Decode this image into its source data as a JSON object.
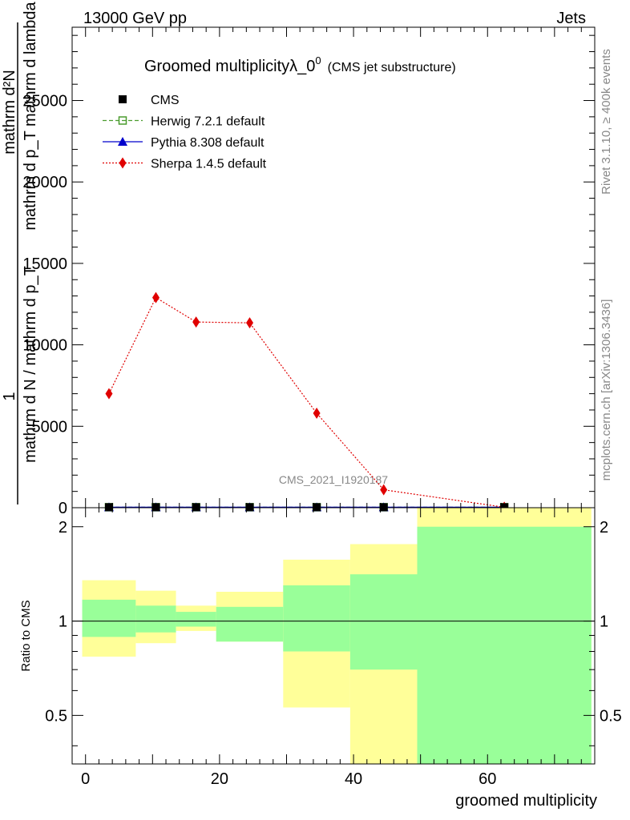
{
  "header": {
    "left_label": "13000 GeV pp",
    "right_label": "Jets"
  },
  "side_labels": {
    "rivet": "Rivet 3.1.10, ≥ 400k events",
    "mcplots": "mcplots.cern.ch [arXiv:1306.3436]"
  },
  "chart_data": {
    "type": "line",
    "title": "Groomed multiplicityλ_0",
    "title_sup": "0",
    "subtitle": "(CMS jet substructure)",
    "watermark": "CMS_2021_I1920187",
    "ylabel_num1": "mathrm d²N",
    "ylabel_den1": "mathrm d p_T mathrm d lambda",
    "ylabel_one": "1",
    "ylabel_den2": "mathrm d N / mathrm d p_T",
    "xlabel": "groomed multiplicity",
    "ratio_ylabel": "Ratio to CMS",
    "xlim": [
      -2,
      76
    ],
    "ylim": [
      0,
      29500
    ],
    "y_ticks": [
      0,
      5000,
      10000,
      15000,
      20000,
      25000
    ],
    "x_ticks": [
      0,
      20,
      40,
      60
    ],
    "ratio_ylim": [
      0.35,
      2.3
    ],
    "ratio_ticks": [
      0.5,
      1,
      2
    ],
    "legend": [
      {
        "name": "CMS",
        "color": "#000000",
        "marker": "square",
        "line": "none"
      },
      {
        "name": "Herwig 7.2.1 default",
        "color": "#4a9c2e",
        "marker": "open-square",
        "line": "dashed"
      },
      {
        "name": "Pythia 8.308 default",
        "color": "#0000cc",
        "marker": "triangle",
        "line": "solid"
      },
      {
        "name": "Sherpa 1.4.5 default",
        "color": "#e00000",
        "marker": "diamond",
        "line": "dotted"
      }
    ],
    "bins": [
      {
        "lo": -0.5,
        "hi": 7.5,
        "x": 3.5
      },
      {
        "lo": 7.5,
        "hi": 13.5,
        "x": 10.5
      },
      {
        "lo": 13.5,
        "hi": 19.5,
        "x": 16.5
      },
      {
        "lo": 19.5,
        "hi": 29.5,
        "x": 24.5
      },
      {
        "lo": 29.5,
        "hi": 39.5,
        "x": 34.5
      },
      {
        "lo": 39.5,
        "hi": 49.5,
        "x": 44.5
      },
      {
        "lo": 49.5,
        "hi": 75.5,
        "x": 62.5
      }
    ],
    "series": [
      {
        "name": "CMS",
        "values": [
          30,
          30,
          30,
          30,
          30,
          30,
          30
        ]
      },
      {
        "name": "Herwig 7.2.1 default",
        "values": [
          30,
          30,
          30,
          30,
          30,
          30,
          30
        ]
      },
      {
        "name": "Pythia 8.308 default",
        "values": [
          30,
          30,
          30,
          30,
          30,
          30,
          30
        ]
      },
      {
        "name": "Sherpa 1.4.5 default",
        "values": [
          7000,
          12900,
          11400,
          11350,
          5800,
          1100,
          30
        ],
        "errors": [
          150,
          300,
          300,
          250,
          150,
          80,
          10
        ]
      }
    ],
    "ratio_bands": {
      "stat_lo": [
        0.89,
        0.92,
        0.96,
        0.86,
        0.8,
        0.7,
        0.35
      ],
      "stat_hi": [
        1.17,
        1.12,
        1.07,
        1.11,
        1.3,
        1.41,
        2.0
      ],
      "tot_lo": [
        0.77,
        0.85,
        0.93,
        0.86,
        0.53,
        0.35,
        0.35
      ],
      "tot_hi": [
        1.35,
        1.25,
        1.12,
        1.24,
        1.57,
        1.76,
        2.3
      ]
    }
  }
}
